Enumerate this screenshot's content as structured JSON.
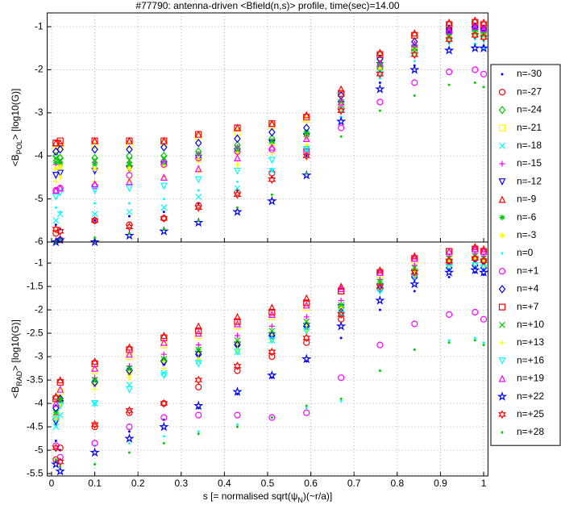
{
  "chart_data": [
    {
      "type": "scatter",
      "title": "#77790: antenna-driven <Bfield(n,s)> profile, time(sec)=14.00",
      "ylabel": [
        "<B",
        "POL",
        "> [log10(G)]"
      ],
      "x": [
        0.01,
        0.02,
        0.1,
        0.18,
        0.26,
        0.34,
        0.43,
        0.51,
        0.59,
        0.67,
        0.76,
        0.84,
        0.92,
        0.98,
        1.0
      ],
      "xlim": [
        -0.01,
        1.01
      ],
      "xticks": [
        0,
        0.1,
        0.2,
        0.3,
        0.4,
        0.5,
        0.6,
        0.7,
        0.8,
        0.9,
        1
      ],
      "ylim": [
        -6,
        -0.68
      ],
      "yticks": [
        -1,
        -2,
        -3,
        -4,
        -5,
        -6
      ],
      "grid": true,
      "legend": "right",
      "series": [
        {
          "name": "n=-30",
          "color": "#0000ff",
          "marker": ".",
          "values": [
            -5.6,
            -5.7,
            -5.5,
            -5.4,
            -5.3,
            -5.1,
            -4.8,
            -4.5,
            -4.0,
            -3.1,
            -2.3,
            -1.9,
            -1.5,
            -1.4,
            -1.45
          ]
        },
        {
          "name": "n=-27",
          "color": "#ff0000",
          "marker": "o",
          "values": [
            -5.8,
            -5.95,
            -5.5,
            -5.6,
            -5.45,
            -5.15,
            -4.85,
            -4.4,
            -3.85,
            -2.9,
            -1.95,
            -1.55,
            -1.1,
            -1.0,
            -1.05
          ]
        },
        {
          "name": "n=-24",
          "color": "#00cc00",
          "marker": "d",
          "values": [
            -4.0,
            -4.05,
            -4.05,
            -4.0,
            -4.0,
            -3.9,
            -3.75,
            -3.6,
            -3.5,
            -2.75,
            -1.95,
            -1.5,
            -1.15,
            -1.1,
            -1.15
          ]
        },
        {
          "name": "n=-21",
          "color": "#ffff00",
          "marker": "s",
          "values": [
            -3.85,
            -3.8,
            -3.75,
            -3.75,
            -3.7,
            -3.55,
            -3.45,
            -3.3,
            -3.15,
            -2.55,
            -1.7,
            -1.2,
            -0.95,
            -0.9,
            -0.95
          ]
        },
        {
          "name": "n=-18",
          "color": "#00ffff",
          "marker": "x",
          "values": [
            -5.5,
            -5.35,
            -5.35,
            -5.3,
            -5.2,
            -4.95,
            -4.75,
            -4.35,
            -3.85,
            -2.85,
            -2.0,
            -1.55,
            -1.2,
            -1.15,
            -1.2
          ]
        },
        {
          "name": "n=-15",
          "color": "#ff00ff",
          "marker": "+",
          "values": [
            -4.2,
            -4.15,
            -4.15,
            -4.15,
            -4.1,
            -3.95,
            -3.8,
            -3.65,
            -3.5,
            -2.7,
            -1.85,
            -1.45,
            -1.1,
            -1.0,
            -1.05
          ]
        },
        {
          "name": "n=-12",
          "color": "#0000ff",
          "marker": "v",
          "values": [
            -4.45,
            -4.4,
            -4.35,
            -4.3,
            -4.2,
            -4.05,
            -3.9,
            -3.7,
            -3.55,
            -2.8,
            -1.9,
            -1.5,
            -1.2,
            -1.1,
            -1.15
          ]
        },
        {
          "name": "n=-9",
          "color": "#ff0000",
          "marker": "^",
          "values": [
            -3.7,
            -3.7,
            -3.65,
            -3.65,
            -3.65,
            -3.5,
            -3.35,
            -3.25,
            -3.05,
            -2.45,
            -1.6,
            -1.15,
            -0.9,
            -0.85,
            -0.9
          ]
        },
        {
          "name": "n=-6",
          "color": "#00cc00",
          "marker": "*",
          "values": [
            -4.15,
            -4.2,
            -4.2,
            -4.2,
            -4.2,
            -4.1,
            -3.9,
            -3.7,
            -3.45,
            -2.75,
            -1.85,
            -1.45,
            -1.2,
            -1.1,
            -1.15
          ]
        },
        {
          "name": "n=-3",
          "color": "#ffff00",
          "marker": "*",
          "values": [
            -4.3,
            -4.25,
            -4.3,
            -4.3,
            -4.25,
            -4.1,
            -3.95,
            -3.75,
            -3.55,
            -2.8,
            -1.95,
            -1.5,
            -1.25,
            -1.15,
            -1.2
          ]
        },
        {
          "name": "n=0",
          "color": "#00ffff",
          "marker": ".",
          "values": [
            -5.2,
            -5.3,
            -5.1,
            -5.1,
            -5.0,
            -4.8,
            -4.6,
            -4.3,
            -3.9,
            -3.1,
            -2.2,
            -1.8,
            -1.5,
            -1.4,
            -1.5
          ]
        },
        {
          "name": "n=+1",
          "color": "#ff00ff",
          "marker": "o",
          "values": [
            -4.8,
            -4.75,
            -4.7,
            -4.45,
            -4.2,
            -4.05,
            -3.9,
            -3.85,
            -3.9,
            -3.35,
            -2.75,
            -2.3,
            -2.05,
            -2.0,
            -2.1
          ]
        },
        {
          "name": "n=+4",
          "color": "#0000ff",
          "marker": "d",
          "values": [
            -3.9,
            -3.85,
            -3.85,
            -3.85,
            -3.8,
            -3.7,
            -3.6,
            -3.45,
            -3.35,
            -2.6,
            -1.75,
            -1.35,
            -1.05,
            -1.0,
            -1.05
          ]
        },
        {
          "name": "n=+7",
          "color": "#ff0000",
          "marker": "s",
          "values": [
            -3.7,
            -3.65,
            -3.65,
            -3.65,
            -3.65,
            -3.5,
            -3.35,
            -3.25,
            -3.1,
            -2.55,
            -1.65,
            -1.2,
            -0.95,
            -0.9,
            -0.95
          ]
        },
        {
          "name": "n=+10",
          "color": "#00cc00",
          "marker": "x",
          "values": [
            -4.05,
            -4.1,
            -4.1,
            -4.1,
            -4.05,
            -3.95,
            -3.8,
            -3.65,
            -3.5,
            -2.75,
            -1.9,
            -1.5,
            -1.2,
            -1.1,
            -1.15
          ]
        },
        {
          "name": "n=+13",
          "color": "#ffff00",
          "marker": "+",
          "values": [
            -4.6,
            -4.5,
            -4.6,
            -4.55,
            -4.5,
            -4.35,
            -4.2,
            -3.95,
            -3.75,
            -2.9,
            -2.05,
            -1.6,
            -1.3,
            -1.2,
            -1.25
          ]
        },
        {
          "name": "n=+16",
          "color": "#00ffff",
          "marker": "v",
          "values": [
            -4.95,
            -4.85,
            -4.8,
            -4.75,
            -4.7,
            -4.55,
            -4.35,
            -4.1,
            -3.85,
            -2.95,
            -2.1,
            -1.65,
            -1.35,
            -1.25,
            -1.3
          ]
        },
        {
          "name": "n=+19",
          "color": "#ff00ff",
          "marker": "^",
          "values": [
            -4.8,
            -4.75,
            -4.65,
            -4.6,
            -4.5,
            -4.3,
            -4.05,
            -3.8,
            -3.6,
            -2.75,
            -1.85,
            -1.4,
            -1.1,
            -1.0,
            -1.05
          ]
        },
        {
          "name": "n=+22",
          "color": "#0000ff",
          "marker": "p",
          "values": [
            -6.0,
            -5.95,
            -6.0,
            -5.85,
            -5.75,
            -5.55,
            -5.3,
            -5.05,
            -4.45,
            -3.2,
            -2.45,
            -2.0,
            -1.55,
            -1.5,
            -1.5
          ]
        },
        {
          "name": "n=+25",
          "color": "#ff0000",
          "marker": "h",
          "values": [
            -5.7,
            -5.75,
            -5.5,
            -5.65,
            -5.45,
            -5.2,
            -4.9,
            -4.55,
            -4.0,
            -2.95,
            -2.1,
            -1.65,
            -1.3,
            -1.2,
            -1.25
          ]
        },
        {
          "name": "n=+28",
          "color": "#00cc00",
          "marker": ".",
          "values": [
            -6.0,
            -5.95,
            -5.9,
            -5.8,
            -5.7,
            -5.5,
            -5.2,
            -4.9,
            -4.4,
            -3.55,
            -2.95,
            -2.6,
            -2.35,
            -2.3,
            -2.4
          ]
        }
      ]
    },
    {
      "type": "scatter",
      "xlabel": [
        "s [= normalised sqrt(ψ",
        "N",
        ")(~r/a)]"
      ],
      "ylabel": [
        "<B",
        "RAD",
        "> [log10(G)]"
      ],
      "x": [
        0.01,
        0.02,
        0.1,
        0.18,
        0.26,
        0.34,
        0.43,
        0.51,
        0.59,
        0.67,
        0.76,
        0.84,
        0.92,
        0.98,
        1.0
      ],
      "xlim": [
        -0.01,
        1.01
      ],
      "xticks": [
        0,
        0.1,
        0.2,
        0.3,
        0.4,
        0.5,
        0.6,
        0.7,
        0.8,
        0.9,
        1
      ],
      "ylim": [
        -5.55,
        -0.55
      ],
      "yticks": [
        -1,
        -1.5,
        -2,
        -2.5,
        -3,
        -3.5,
        -4,
        -4.5,
        -5,
        -5.5
      ],
      "grid": true,
      "series": [
        {
          "color": "#0000ff",
          "marker": ".",
          "values": [
            -4.8,
            -5.0,
            -4.9,
            -4.6,
            -4.35,
            -4.1,
            -3.8,
            -3.45,
            -3.1,
            -2.6,
            -2.0,
            -1.6,
            -1.3,
            -1.2,
            -1.25
          ]
        },
        {
          "color": "#ff0000",
          "marker": "o",
          "values": [
            -5.2,
            -4.95,
            -4.5,
            -4.2,
            -4.0,
            -3.65,
            -3.3,
            -3.0,
            -2.7,
            -2.2,
            -1.55,
            -1.25,
            -1.0,
            -0.9,
            -0.95
          ]
        },
        {
          "color": "#00cc00",
          "marker": "d",
          "values": [
            -4.1,
            -3.95,
            -3.55,
            -3.3,
            -3.1,
            -2.95,
            -2.75,
            -2.55,
            -2.35,
            -1.95,
            -1.45,
            -1.15,
            -0.95,
            -0.9,
            -0.95
          ]
        },
        {
          "color": "#ffff00",
          "marker": "s",
          "values": [
            -4.0,
            -3.75,
            -3.3,
            -3.0,
            -2.75,
            -2.55,
            -2.35,
            -2.15,
            -1.95,
            -1.6,
            -1.25,
            -0.95,
            -0.8,
            -0.7,
            -0.75
          ]
        },
        {
          "color": "#00ffff",
          "marker": "x",
          "values": [
            -4.5,
            -4.25,
            -4.0,
            -3.6,
            -3.35,
            -3.1,
            -2.9,
            -2.65,
            -2.4,
            -2.05,
            -1.55,
            -1.2,
            -1.0,
            -0.95,
            -1.0
          ]
        },
        {
          "color": "#ff00ff",
          "marker": "+",
          "values": [
            -4.25,
            -3.95,
            -3.45,
            -3.2,
            -2.95,
            -2.75,
            -2.55,
            -2.35,
            -2.15,
            -1.8,
            -1.35,
            -1.05,
            -0.85,
            -0.8,
            -0.85
          ]
        },
        {
          "color": "#0000ff",
          "marker": "v",
          "values": [
            -4.4,
            -4.0,
            -3.6,
            -3.35,
            -3.15,
            -2.95,
            -2.75,
            -2.55,
            -2.35,
            -1.95,
            -1.5,
            -1.2,
            -1.0,
            -0.95,
            -1.0
          ]
        },
        {
          "color": "#ff0000",
          "marker": "^",
          "values": [
            -3.85,
            -3.5,
            -3.1,
            -2.8,
            -2.55,
            -2.35,
            -2.15,
            -1.95,
            -1.75,
            -1.5,
            -1.15,
            -0.85,
            -0.75,
            -0.65,
            -0.7
          ]
        },
        {
          "color": "#00cc00",
          "marker": "*",
          "values": [
            -4.2,
            -3.9,
            -3.5,
            -3.25,
            -3.05,
            -2.85,
            -2.7,
            -2.5,
            -2.3,
            -1.9,
            -1.4,
            -1.15,
            -0.95,
            -0.9,
            -0.95
          ]
        },
        {
          "color": "#ffff00",
          "marker": "*",
          "values": [
            -4.3,
            -4.0,
            -3.6,
            -3.35,
            -3.1,
            -2.9,
            -2.7,
            -2.5,
            -2.3,
            -1.95,
            -1.45,
            -1.15,
            -0.95,
            -0.9,
            -0.95
          ]
        },
        {
          "color": "#00ffff",
          "marker": ".",
          "values": [
            -5.0,
            -5.2,
            -4.9,
            -4.85,
            -4.7,
            -4.6,
            -4.45,
            -4.3,
            -4.1,
            -3.95,
            -3.3,
            -2.85,
            -2.65,
            -2.6,
            -2.7
          ]
        },
        {
          "color": "#ff00ff",
          "marker": "o",
          "values": [
            -4.9,
            -5.15,
            -4.85,
            -4.5,
            -4.3,
            -4.25,
            -4.25,
            -4.3,
            -4.2,
            -3.45,
            -2.75,
            -2.3,
            -2.1,
            -2.05,
            -2.2
          ]
        },
        {
          "color": "#0000ff",
          "marker": "d",
          "values": [
            -4.1,
            -3.9,
            -3.55,
            -3.3,
            -3.1,
            -2.95,
            -2.75,
            -2.55,
            -2.35,
            -2.05,
            -1.55,
            -1.3,
            -1.1,
            -1.05,
            -1.1
          ]
        },
        {
          "color": "#ff0000",
          "marker": "s",
          "values": [
            -3.9,
            -3.55,
            -3.15,
            -2.85,
            -2.6,
            -2.45,
            -2.25,
            -2.05,
            -1.85,
            -1.6,
            -1.2,
            -0.9,
            -0.75,
            -0.7,
            -0.75
          ]
        },
        {
          "color": "#00cc00",
          "marker": "x",
          "values": [
            -4.2,
            -3.95,
            -3.5,
            -3.25,
            -3.05,
            -2.85,
            -2.65,
            -2.45,
            -2.25,
            -1.9,
            -1.4,
            -1.1,
            -0.9,
            -0.85,
            -0.9
          ]
        },
        {
          "color": "#ffff00",
          "marker": "+",
          "values": [
            -4.35,
            -4.05,
            -3.7,
            -3.45,
            -3.25,
            -3.05,
            -2.85,
            -2.65,
            -2.45,
            -2.05,
            -1.55,
            -1.25,
            -1.05,
            -1.0,
            -1.05
          ]
        },
        {
          "color": "#00ffff",
          "marker": "v",
          "values": [
            -4.35,
            -4.05,
            -4.0,
            -3.7,
            -3.4,
            -3.15,
            -2.9,
            -2.65,
            -2.45,
            -2.1,
            -1.6,
            -1.3,
            -1.1,
            -1.05,
            -1.1
          ]
        },
        {
          "color": "#ff00ff",
          "marker": "^",
          "values": [
            -4.0,
            -3.7,
            -3.25,
            -2.95,
            -2.7,
            -2.5,
            -2.3,
            -2.1,
            -1.9,
            -1.55,
            -1.2,
            -0.9,
            -0.75,
            -0.7,
            -0.75
          ]
        },
        {
          "color": "#0000ff",
          "marker": "p",
          "values": [
            -5.3,
            -5.45,
            -5.05,
            -4.75,
            -4.5,
            -4.05,
            -3.75,
            -3.4,
            -3.05,
            -2.35,
            -1.8,
            -1.45,
            -1.2,
            -1.15,
            -1.2
          ]
        },
        {
          "color": "#ff0000",
          "marker": "h",
          "values": [
            -4.95,
            -5.25,
            -4.45,
            -4.15,
            -4.0,
            -3.5,
            -3.2,
            -2.9,
            -2.6,
            -2.1,
            -1.5,
            -1.2,
            -0.95,
            -0.9,
            -0.95
          ]
        },
        {
          "color": "#00cc00",
          "marker": ".",
          "values": [
            -5.2,
            -5.35,
            -5.3,
            -5.05,
            -4.85,
            -4.65,
            -4.5,
            -4.3,
            -4.05,
            -3.9,
            -3.3,
            -2.85,
            -2.7,
            -2.65,
            -2.75
          ]
        }
      ]
    }
  ]
}
